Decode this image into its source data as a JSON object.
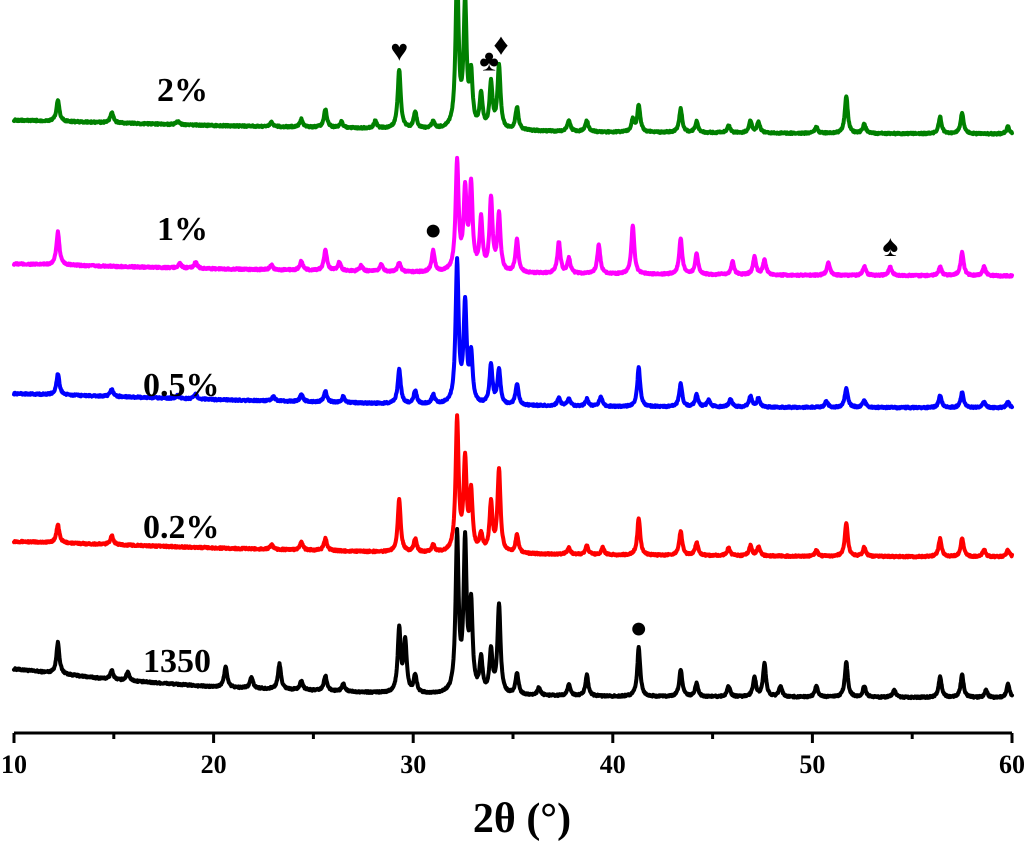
{
  "chart_data": {
    "type": "line",
    "title": "",
    "xlabel": "2θ (°)",
    "ylabel": "",
    "xlim": [
      10,
      60
    ],
    "xticks": [
      10,
      20,
      30,
      40,
      50,
      60
    ],
    "y_axis_visible": false,
    "grid": false,
    "legend": "none (series labeled inline)",
    "series": [
      {
        "name": "1350",
        "color": "#000000",
        "baseline": [
          [
            10,
            0.6
          ],
          [
            15,
            0.42
          ],
          [
            20,
            0.3
          ],
          [
            30,
            0.18
          ],
          [
            40,
            0.14
          ],
          [
            50,
            0.13
          ],
          [
            60,
            0.12
          ]
        ],
        "peaks": [
          [
            12.2,
            0.52
          ],
          [
            14.9,
            0.15
          ],
          [
            15.7,
            0.15
          ],
          [
            20.6,
            0.35
          ],
          [
            21.9,
            0.18
          ],
          [
            23.3,
            0.42
          ],
          [
            24.4,
            0.15
          ],
          [
            25.6,
            0.25
          ],
          [
            26.5,
            0.12
          ],
          [
            29.3,
            1.05
          ],
          [
            29.6,
            0.85
          ],
          [
            30.1,
            0.3
          ],
          [
            32.2,
            2.6
          ],
          [
            32.6,
            2.45
          ],
          [
            32.9,
            1.4
          ],
          [
            33.4,
            0.55
          ],
          [
            33.9,
            0.7
          ],
          [
            34.3,
            1.48
          ],
          [
            35.2,
            0.35
          ],
          [
            36.3,
            0.12
          ],
          [
            37.8,
            0.18
          ],
          [
            38.7,
            0.35
          ],
          [
            41.3,
            0.82
          ],
          [
            43.4,
            0.45
          ],
          [
            44.2,
            0.22
          ],
          [
            45.8,
            0.18
          ],
          [
            47.1,
            0.32
          ],
          [
            47.6,
            0.55
          ],
          [
            48.4,
            0.18
          ],
          [
            50.2,
            0.18
          ],
          [
            51.7,
            0.58
          ],
          [
            52.6,
            0.18
          ],
          [
            54.1,
            0.12
          ],
          [
            56.4,
            0.35
          ],
          [
            57.5,
            0.38
          ],
          [
            58.7,
            0.12
          ],
          [
            59.8,
            0.22
          ]
        ]
      },
      {
        "name": "0.2%",
        "color": "#ff0000",
        "baseline": [
          [
            10,
            0.36
          ],
          [
            20,
            0.25
          ],
          [
            30,
            0.17
          ],
          [
            40,
            0.13
          ],
          [
            50,
            0.11
          ],
          [
            60,
            0.1
          ]
        ],
        "peaks": [
          [
            12.2,
            0.3
          ],
          [
            14.9,
            0.15
          ],
          [
            22.9,
            0.08
          ],
          [
            24.4,
            0.13
          ],
          [
            25.6,
            0.2
          ],
          [
            29.3,
            0.88
          ],
          [
            30.1,
            0.22
          ],
          [
            31.0,
            0.12
          ],
          [
            32.2,
            2.2
          ],
          [
            32.6,
            1.48
          ],
          [
            32.9,
            0.95
          ],
          [
            33.4,
            0.28
          ],
          [
            33.9,
            0.8
          ],
          [
            34.3,
            1.38
          ],
          [
            35.2,
            0.3
          ],
          [
            37.8,
            0.12
          ],
          [
            38.7,
            0.15
          ],
          [
            39.5,
            0.12
          ],
          [
            41.3,
            0.62
          ],
          [
            43.4,
            0.4
          ],
          [
            44.2,
            0.22
          ],
          [
            45.8,
            0.13
          ],
          [
            46.9,
            0.17
          ],
          [
            47.3,
            0.15
          ],
          [
            50.2,
            0.1
          ],
          [
            51.7,
            0.55
          ],
          [
            52.6,
            0.15
          ],
          [
            56.4,
            0.3
          ],
          [
            57.5,
            0.3
          ],
          [
            58.6,
            0.12
          ],
          [
            59.8,
            0.12
          ]
        ]
      },
      {
        "name": "0.5%",
        "color": "#0000ff",
        "baseline": [
          [
            10,
            0.34
          ],
          [
            20,
            0.24
          ],
          [
            30,
            0.16
          ],
          [
            40,
            0.12
          ],
          [
            50,
            0.11
          ],
          [
            60,
            0.1
          ]
        ],
        "peaks": [
          [
            12.2,
            0.35
          ],
          [
            14.9,
            0.12
          ],
          [
            18.2,
            0.05
          ],
          [
            19.1,
            0.08
          ],
          [
            23.0,
            0.07
          ],
          [
            24.4,
            0.12
          ],
          [
            25.6,
            0.18
          ],
          [
            26.5,
            0.1
          ],
          [
            29.3,
            0.58
          ],
          [
            30.1,
            0.22
          ],
          [
            31.0,
            0.15
          ],
          [
            32.2,
            2.35
          ],
          [
            32.6,
            1.62
          ],
          [
            32.9,
            0.8
          ],
          [
            33.9,
            0.65
          ],
          [
            34.3,
            0.58
          ],
          [
            35.2,
            0.35
          ],
          [
            37.3,
            0.14
          ],
          [
            37.8,
            0.12
          ],
          [
            38.7,
            0.12
          ],
          [
            39.4,
            0.16
          ],
          [
            41.3,
            0.65
          ],
          [
            43.4,
            0.38
          ],
          [
            44.2,
            0.2
          ],
          [
            44.8,
            0.12
          ],
          [
            45.9,
            0.13
          ],
          [
            46.9,
            0.18
          ],
          [
            47.3,
            0.15
          ],
          [
            50.7,
            0.1
          ],
          [
            51.7,
            0.32
          ],
          [
            52.6,
            0.12
          ],
          [
            56.4,
            0.2
          ],
          [
            57.5,
            0.25
          ],
          [
            58.6,
            0.1
          ],
          [
            59.8,
            0.1
          ]
        ]
      },
      {
        "name": "1%",
        "color": "#ff00ff",
        "baseline": [
          [
            10,
            0.3
          ],
          [
            20,
            0.22
          ],
          [
            30,
            0.16
          ],
          [
            40,
            0.13
          ],
          [
            50,
            0.11
          ],
          [
            60,
            0.1
          ]
        ],
        "peaks": [
          [
            12.2,
            0.55
          ],
          [
            18.3,
            0.08
          ],
          [
            19.1,
            0.1
          ],
          [
            22.9,
            0.08
          ],
          [
            24.4,
            0.15
          ],
          [
            25.6,
            0.35
          ],
          [
            26.3,
            0.15
          ],
          [
            27.4,
            0.1
          ],
          [
            28.4,
            0.12
          ],
          [
            29.3,
            0.15
          ],
          [
            31.0,
            0.35
          ],
          [
            32.2,
            1.82
          ],
          [
            32.6,
            1.3
          ],
          [
            32.9,
            1.4
          ],
          [
            33.4,
            0.85
          ],
          [
            33.9,
            1.2
          ],
          [
            34.3,
            0.95
          ],
          [
            35.2,
            0.55
          ],
          [
            37.3,
            0.52
          ],
          [
            37.8,
            0.25
          ],
          [
            39.3,
            0.48
          ],
          [
            41.0,
            0.8
          ],
          [
            43.4,
            0.6
          ],
          [
            44.2,
            0.35
          ],
          [
            46.0,
            0.22
          ],
          [
            47.1,
            0.3
          ],
          [
            47.6,
            0.25
          ],
          [
            50.8,
            0.22
          ],
          [
            52.6,
            0.15
          ],
          [
            53.9,
            0.15
          ],
          [
            56.4,
            0.15
          ],
          [
            57.5,
            0.4
          ],
          [
            58.6,
            0.15
          ]
        ]
      },
      {
        "name": "2%",
        "color": "#008000",
        "baseline": [
          [
            10,
            0.33
          ],
          [
            20,
            0.24
          ],
          [
            30,
            0.18
          ],
          [
            40,
            0.13
          ],
          [
            50,
            0.11
          ],
          [
            60,
            0.1
          ]
        ],
        "peaks": [
          [
            12.2,
            0.35
          ],
          [
            14.9,
            0.18
          ],
          [
            18.2,
            0.05
          ],
          [
            22.9,
            0.08
          ],
          [
            24.4,
            0.13
          ],
          [
            25.6,
            0.3
          ],
          [
            26.4,
            0.1
          ],
          [
            28.1,
            0.12
          ],
          [
            29.3,
            0.98
          ],
          [
            30.1,
            0.28
          ],
          [
            31.0,
            0.12
          ],
          [
            32.2,
            2.6
          ],
          [
            32.6,
            2.05
          ],
          [
            32.9,
            0.85
          ],
          [
            33.4,
            0.55
          ],
          [
            33.9,
            0.75
          ],
          [
            34.3,
            1.05
          ],
          [
            35.2,
            0.38
          ],
          [
            37.8,
            0.18
          ],
          [
            38.7,
            0.18
          ],
          [
            41.0,
            0.2
          ],
          [
            41.3,
            0.45
          ],
          [
            43.4,
            0.4
          ],
          [
            44.2,
            0.18
          ],
          [
            45.8,
            0.12
          ],
          [
            46.9,
            0.2
          ],
          [
            47.3,
            0.18
          ],
          [
            50.2,
            0.1
          ],
          [
            51.7,
            0.62
          ],
          [
            52.6,
            0.15
          ],
          [
            56.4,
            0.28
          ],
          [
            57.5,
            0.35
          ],
          [
            59.8,
            0.12
          ]
        ]
      }
    ],
    "annotations": [
      {
        "symbol": "♥",
        "series": "2%",
        "x": 29.3
      },
      {
        "symbol": "♣",
        "series": "2%",
        "x": 33.8
      },
      {
        "symbol": "♦",
        "series": "2%",
        "x": 34.4
      },
      {
        "symbol": "●",
        "series": "1%",
        "x": 31.0
      },
      {
        "symbol": "♠",
        "series": "1%",
        "x": 53.9
      },
      {
        "symbol": "●",
        "series": "1350",
        "x": 41.3
      }
    ]
  }
}
